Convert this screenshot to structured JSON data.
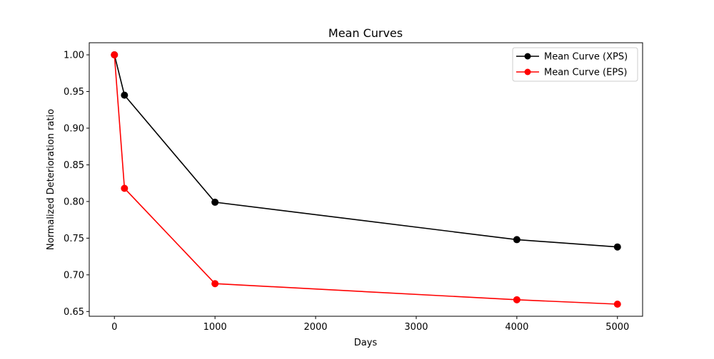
{
  "chart_data": {
    "type": "line",
    "title": "Mean Curves",
    "xlabel": "Days",
    "ylabel": "Normalized Deterioration ratio",
    "xlim": [
      -250,
      5250
    ],
    "ylim": [
      0.6435,
      1.0165
    ],
    "xticks": [
      0,
      1000,
      2000,
      3000,
      4000,
      5000
    ],
    "yticks": [
      0.65,
      0.7,
      0.75,
      0.8,
      0.85,
      0.9,
      0.95,
      1.0
    ],
    "ytick_format": 2,
    "grid": false,
    "legend_position": "top-right",
    "series": [
      {
        "name": "Mean Curve (XPS)",
        "color": "#000000",
        "marker": "circle",
        "x": [
          0,
          100,
          1000,
          4000,
          5000
        ],
        "y": [
          1.0,
          0.945,
          0.799,
          0.748,
          0.738
        ]
      },
      {
        "name": "Mean Curve (EPS)",
        "color": "#ff0000",
        "marker": "circle",
        "x": [
          0,
          100,
          1000,
          4000,
          5000
        ],
        "y": [
          1.0,
          0.818,
          0.688,
          0.666,
          0.66
        ]
      }
    ]
  }
}
